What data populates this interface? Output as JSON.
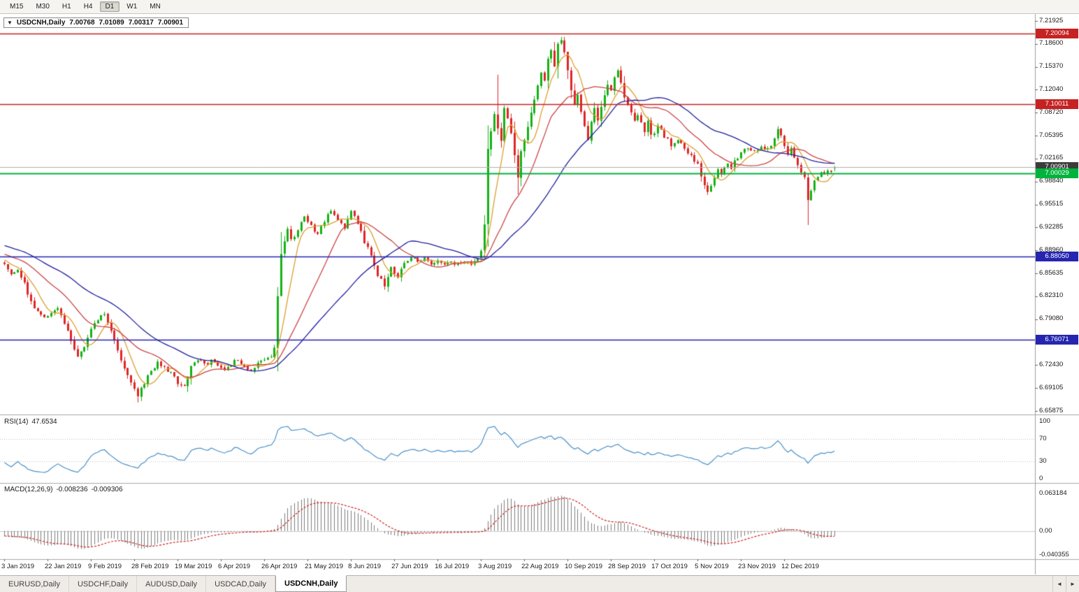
{
  "toolbar": {
    "timeframes": [
      "M15",
      "M30",
      "H1",
      "H4",
      "D1",
      "W1",
      "MN"
    ],
    "active_timeframe": "D1"
  },
  "icons": {
    "collapse_arrow": "▼",
    "scroll_left": "◄",
    "scroll_right": "►"
  },
  "title_bar": {
    "symbol_label": "USDCNH,Daily",
    "open": "7.00768",
    "high": "7.01089",
    "low": "7.00317",
    "close": "7.00901"
  },
  "price_scale": {
    "labels": [
      "7.21925",
      "7.18600",
      "7.15370",
      "7.12040",
      "7.08720",
      "7.05395",
      "7.02165",
      "6.98840",
      "6.95515",
      "6.92285",
      "6.88960",
      "6.85635",
      "6.82310",
      "6.79080",
      "6.75755",
      "6.72430",
      "6.69105",
      "6.65875"
    ]
  },
  "levels": [
    {
      "type": "resistance-upper",
      "price": 7.20094,
      "label": "7.20094",
      "line_color": "#c62222",
      "badge_color": "#c62222",
      "width": 1.4
    },
    {
      "type": "resistance-lower",
      "price": 7.10011,
      "label": "7.10011",
      "line_color": "#c62222",
      "badge_color": "#c62222",
      "width": 1.4
    },
    {
      "type": "bid-line",
      "price": 7.00901,
      "label": "7.00901",
      "line_color": "#b0b0b0",
      "badge_color": "#3c3c3c",
      "width": 1
    },
    {
      "type": "support-green",
      "price": 7.00029,
      "label": "7.00029",
      "line_color": "#00b33c",
      "badge_color": "#00b33c",
      "width": 2
    },
    {
      "type": "support-blue-1",
      "price": 6.8805,
      "label": "6.88050",
      "line_color": "#2525b0",
      "badge_color": "#2525b0",
      "width": 1.6
    },
    {
      "type": "support-blue-2",
      "price": 6.76071,
      "label": "6.76071",
      "line_color": "#2525b0",
      "badge_color": "#2525b0",
      "width": 1.6
    }
  ],
  "rsi": {
    "name": "RSI(14)",
    "value": "47.6534",
    "period": 14,
    "scale": [
      "100",
      "70",
      "30",
      "0"
    ],
    "guide_levels": [
      70,
      30
    ],
    "line_color": "#4a90c8"
  },
  "macd": {
    "name": "MACD(12,26,9)",
    "main_value": "-0.008236",
    "signal_value": "-0.009306",
    "fast": 12,
    "slow": 26,
    "signal": 9,
    "scale": [
      "0.063184",
      "0.00",
      "-0.040355"
    ],
    "histogram_color": "#7d7d7d",
    "signal_color": "#cc2222"
  },
  "dates": [
    "3 Jan 2019",
    "22 Jan 2019",
    "9 Feb 2019",
    "28 Feb 2019",
    "19 Mar 2019",
    "6 Apr 2019",
    "26 Apr 2019",
    "21 May 2019",
    "8 Jun 2019",
    "27 Jun 2019",
    "16 Jul 2019",
    "3 Aug 2019",
    "22 Aug 2019",
    "10 Sep 2019",
    "28 Sep 2019",
    "17 Oct 2019",
    "5 Nov 2019",
    "23 Nov 2019",
    "12 Dec 2019"
  ],
  "candles_per_date_label": 13,
  "tabs": {
    "items": [
      "EURUSD,Daily",
      "USDCHF,Daily",
      "AUDUSD,Daily",
      "USDCAD,Daily",
      "USDCNH,Daily"
    ],
    "active": "USDCNH,Daily"
  },
  "chart_data": {
    "type": "candlestick",
    "symbol": "USDCNH",
    "timeframe": "Daily",
    "title": "USDCNH,Daily 7.00768 7.01089 7.00317 7.00901",
    "x_range": "3 Jan 2019 - late Dec 2019",
    "y_range": [
      6.65875,
      7.21925
    ],
    "candle_count": 250,
    "up_color": "#14b214",
    "down_color": "#e02525",
    "ma_lines": [
      {
        "period": 7,
        "color": "#dd9f2e"
      },
      {
        "period": 20,
        "color": "#cc4444"
      },
      {
        "period": 40,
        "color": "#1f1fa0"
      }
    ],
    "close_anchors": [
      [
        0,
        6.872
      ],
      [
        2,
        6.858
      ],
      [
        4,
        6.864
      ],
      [
        6,
        6.842
      ],
      [
        8,
        6.815
      ],
      [
        10,
        6.8
      ],
      [
        12,
        6.792
      ],
      [
        14,
        6.8
      ],
      [
        16,
        6.808
      ],
      [
        18,
        6.785
      ],
      [
        20,
        6.758
      ],
      [
        22,
        6.74
      ],
      [
        24,
        6.752
      ],
      [
        26,
        6.774
      ],
      [
        28,
        6.79
      ],
      [
        30,
        6.8
      ],
      [
        32,
        6.772
      ],
      [
        34,
        6.748
      ],
      [
        36,
        6.72
      ],
      [
        38,
        6.698
      ],
      [
        40,
        6.682
      ],
      [
        42,
        6.7
      ],
      [
        44,
        6.716
      ],
      [
        46,
        6.73
      ],
      [
        48,
        6.722
      ],
      [
        50,
        6.712
      ],
      [
        52,
        6.7
      ],
      [
        54,
        6.692
      ],
      [
        56,
        6.722
      ],
      [
        58,
        6.732
      ],
      [
        60,
        6.726
      ],
      [
        62,
        6.73
      ],
      [
        64,
        6.722
      ],
      [
        66,
        6.716
      ],
      [
        68,
        6.726
      ],
      [
        70,
        6.734
      ],
      [
        72,
        6.724
      ],
      [
        74,
        6.714
      ],
      [
        76,
        6.728
      ],
      [
        78,
        6.732
      ],
      [
        80,
        6.736
      ],
      [
        81,
        6.748
      ],
      [
        82,
        6.825
      ],
      [
        83,
        6.882
      ],
      [
        84,
        6.902
      ],
      [
        85,
        6.922
      ],
      [
        86,
        6.905
      ],
      [
        88,
        6.918
      ],
      [
        90,
        6.938
      ],
      [
        92,
        6.926
      ],
      [
        94,
        6.912
      ],
      [
        96,
        6.932
      ],
      [
        98,
        6.946
      ],
      [
        100,
        6.934
      ],
      [
        102,
        6.922
      ],
      [
        104,
        6.944
      ],
      [
        106,
        6.93
      ],
      [
        108,
        6.902
      ],
      [
        110,
        6.882
      ],
      [
        112,
        6.854
      ],
      [
        114,
        6.84
      ],
      [
        116,
        6.864
      ],
      [
        118,
        6.852
      ],
      [
        120,
        6.872
      ],
      [
        122,
        6.88
      ],
      [
        124,
        6.872
      ],
      [
        126,
        6.878
      ],
      [
        128,
        6.872
      ],
      [
        130,
        6.876
      ],
      [
        132,
        6.87
      ],
      [
        134,
        6.874
      ],
      [
        136,
        6.87
      ],
      [
        138,
        6.874
      ],
      [
        140,
        6.872
      ],
      [
        142,
        6.876
      ],
      [
        143,
        6.886
      ],
      [
        144,
        6.925
      ],
      [
        145,
        7.038
      ],
      [
        146,
        7.058
      ],
      [
        147,
        7.088
      ],
      [
        148,
        7.062
      ],
      [
        149,
        7.048
      ],
      [
        150,
        7.096
      ],
      [
        151,
        7.082
      ],
      [
        152,
        7.058
      ],
      [
        153,
        7.025
      ],
      [
        154,
        6.992
      ],
      [
        155,
        7.03
      ],
      [
        156,
        7.048
      ],
      [
        157,
        7.068
      ],
      [
        158,
        7.088
      ],
      [
        159,
        7.106
      ],
      [
        160,
        7.126
      ],
      [
        161,
        7.148
      ],
      [
        162,
        7.134
      ],
      [
        163,
        7.162
      ],
      [
        164,
        7.178
      ],
      [
        165,
        7.156
      ],
      [
        166,
        7.186
      ],
      [
        167,
        7.19
      ],
      [
        168,
        7.176
      ],
      [
        169,
        7.15
      ],
      [
        170,
        7.122
      ],
      [
        171,
        7.1
      ],
      [
        172,
        7.112
      ],
      [
        173,
        7.086
      ],
      [
        174,
        7.066
      ],
      [
        175,
        7.05
      ],
      [
        176,
        7.072
      ],
      [
        177,
        7.092
      ],
      [
        178,
        7.076
      ],
      [
        179,
        7.096
      ],
      [
        180,
        7.112
      ],
      [
        181,
        7.126
      ],
      [
        182,
        7.118
      ],
      [
        183,
        7.136
      ],
      [
        184,
        7.146
      ],
      [
        185,
        7.128
      ],
      [
        186,
        7.11
      ],
      [
        187,
        7.096
      ],
      [
        188,
        7.086
      ],
      [
        189,
        7.076
      ],
      [
        190,
        7.086
      ],
      [
        191,
        7.072
      ],
      [
        192,
        7.062
      ],
      [
        193,
        7.074
      ],
      [
        194,
        7.056
      ],
      [
        195,
        7.06
      ],
      [
        196,
        7.068
      ],
      [
        198,
        7.054
      ],
      [
        200,
        7.042
      ],
      [
        202,
        7.05
      ],
      [
        204,
        7.036
      ],
      [
        206,
        7.026
      ],
      [
        208,
        7.012
      ],
      [
        209,
        6.998
      ],
      [
        210,
        6.986
      ],
      [
        211,
        6.972
      ],
      [
        212,
        6.982
      ],
      [
        213,
        6.994
      ],
      [
        214,
        7.004
      ],
      [
        215,
        6.996
      ],
      [
        216,
        7.006
      ],
      [
        217,
        7.014
      ],
      [
        218,
        7.006
      ],
      [
        219,
        7.016
      ],
      [
        220,
        7.024
      ],
      [
        221,
        7.03
      ],
      [
        223,
        7.036
      ],
      [
        225,
        7.03
      ],
      [
        227,
        7.04
      ],
      [
        229,
        7.034
      ],
      [
        231,
        7.048
      ],
      [
        232,
        7.062
      ],
      [
        233,
        7.052
      ],
      [
        234,
        7.04
      ],
      [
        235,
        7.03
      ],
      [
        236,
        7.034
      ],
      [
        237,
        7.022
      ],
      [
        238,
        7.012
      ],
      [
        239,
        7.004
      ],
      [
        240,
        6.996
      ],
      [
        241,
        6.96
      ],
      [
        242,
        6.976
      ],
      [
        243,
        6.988
      ],
      [
        244,
        6.996
      ],
      [
        245,
        7.003
      ],
      [
        246,
        6.999
      ],
      [
        247,
        7.006
      ],
      [
        248,
        7.004
      ],
      [
        249,
        7.009
      ]
    ],
    "wick_overrides": [
      {
        "i": 40,
        "low": 6.671
      },
      {
        "i": 55,
        "low": 6.686
      },
      {
        "i": 83,
        "high": 6.916
      },
      {
        "i": 148,
        "high": 7.142
      },
      {
        "i": 154,
        "low": 6.97
      },
      {
        "i": 167,
        "high": 7.1965
      },
      {
        "i": 241,
        "low": 6.926
      }
    ],
    "last_candle": {
      "open": 7.00768,
      "high": 7.01089,
      "low": 7.00317,
      "close": 7.00901
    },
    "prehistory": {
      "bars": 60,
      "start": 6.948,
      "end": 6.872
    }
  }
}
